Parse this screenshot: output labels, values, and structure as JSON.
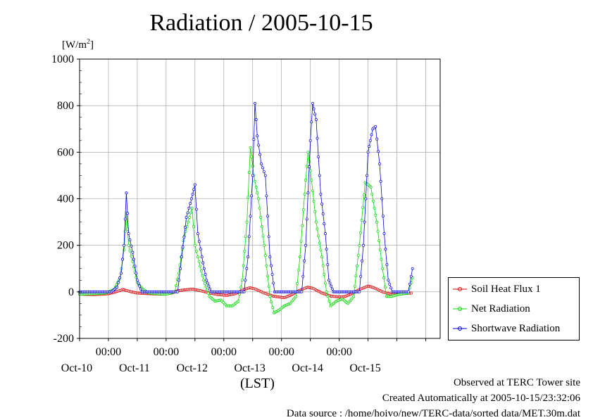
{
  "title": "Radiation / 2005-10-15",
  "ylabel_unit": "[W/m",
  "ylabel_unit_sup": "2",
  "ylabel_unit_close": "]",
  "xaxis_caption": "(LST)",
  "footer": {
    "line1": "Observed at TERC Tower site",
    "line2": "Created Automatically at 2005-10-15/23:32:06",
    "line3": "Data source : /home/hoivo/new/TERC-data/sorted  data/MET.30m.dat"
  },
  "colors": {
    "soil": "#e00000",
    "net": "#00d800",
    "sw": "#0000e0",
    "grid": "#999999"
  },
  "chart_data": {
    "type": "line",
    "title": "Radiation / 2005-10-15",
    "ylabel": "[W/m2]",
    "xlabel": "(LST)",
    "ylim": [
      -200,
      1000
    ],
    "yticks": [
      -200,
      0,
      200,
      400,
      600,
      800,
      1000
    ],
    "xlim_days": [
      9.5,
      15.75
    ],
    "xticks": [
      {
        "time": "00:00",
        "date": "Oct-10",
        "day": 10
      },
      {
        "time": "00:00",
        "date": "Oct-11",
        "day": 11
      },
      {
        "time": "00:00",
        "date": "Oct-12",
        "day": 12
      },
      {
        "time": "00:00",
        "date": "Oct-13",
        "day": 13
      },
      {
        "time": "00:00",
        "date": "Oct-14",
        "day": 14
      },
      {
        "time": "",
        "date": "Oct-15",
        "day": 15
      }
    ],
    "grid": true,
    "legend_position": "right",
    "series": [
      {
        "name": "Soil Heat Flux 1",
        "color": "#e00000",
        "points": [
          [
            9.5,
            -10
          ],
          [
            9.75,
            -12
          ],
          [
            9.9,
            -10
          ],
          [
            10.0,
            -8
          ],
          [
            10.1,
            -2
          ],
          [
            10.25,
            10
          ],
          [
            10.4,
            0
          ],
          [
            10.5,
            -5
          ],
          [
            10.7,
            -8
          ],
          [
            10.95,
            -10
          ],
          [
            11.1,
            -5
          ],
          [
            11.2,
            5
          ],
          [
            11.3,
            8
          ],
          [
            11.45,
            12
          ],
          [
            11.6,
            5
          ],
          [
            11.75,
            -5
          ],
          [
            11.9,
            -12
          ],
          [
            12.05,
            -15
          ],
          [
            12.2,
            -8
          ],
          [
            12.35,
            10
          ],
          [
            12.45,
            18
          ],
          [
            12.55,
            12
          ],
          [
            12.7,
            -5
          ],
          [
            12.85,
            -18
          ],
          [
            12.95,
            -22
          ],
          [
            13.05,
            -25
          ],
          [
            13.15,
            -15
          ],
          [
            13.3,
            5
          ],
          [
            13.45,
            20
          ],
          [
            13.55,
            15
          ],
          [
            13.7,
            -5
          ],
          [
            13.85,
            -18
          ],
          [
            14.0,
            -22
          ],
          [
            14.1,
            -20
          ],
          [
            14.2,
            -10
          ],
          [
            14.35,
            10
          ],
          [
            14.5,
            25
          ],
          [
            14.6,
            18
          ],
          [
            14.75,
            0
          ],
          [
            14.9,
            -10
          ],
          [
            15.0,
            -10
          ],
          [
            15.1,
            -8
          ],
          [
            15.25,
            -5
          ]
        ]
      },
      {
        "name": "Net Radiation",
        "color": "#00d800",
        "points": [
          [
            9.5,
            -10
          ],
          [
            9.75,
            -8
          ],
          [
            9.95,
            -5
          ],
          [
            10.1,
            10
          ],
          [
            10.2,
            60
          ],
          [
            10.27,
            180
          ],
          [
            10.31,
            340
          ],
          [
            10.35,
            200
          ],
          [
            10.42,
            130
          ],
          [
            10.5,
            40
          ],
          [
            10.6,
            10
          ],
          [
            10.7,
            -5
          ],
          [
            10.85,
            -8
          ],
          [
            11.0,
            -10
          ],
          [
            11.15,
            0
          ],
          [
            11.22,
            80
          ],
          [
            11.3,
            220
          ],
          [
            11.38,
            300
          ],
          [
            11.45,
            360
          ],
          [
            11.5,
            200
          ],
          [
            11.55,
            150
          ],
          [
            11.65,
            50
          ],
          [
            11.75,
            -20
          ],
          [
            11.85,
            -40
          ],
          [
            11.95,
            -35
          ],
          [
            12.05,
            -60
          ],
          [
            12.15,
            -60
          ],
          [
            12.25,
            -40
          ],
          [
            12.32,
            50
          ],
          [
            12.4,
            300
          ],
          [
            12.46,
            620
          ],
          [
            12.52,
            500
          ],
          [
            12.6,
            400
          ],
          [
            12.7,
            200
          ],
          [
            12.8,
            -20
          ],
          [
            12.87,
            -90
          ],
          [
            12.95,
            -80
          ],
          [
            13.05,
            -60
          ],
          [
            13.15,
            -50
          ],
          [
            13.25,
            -20
          ],
          [
            13.32,
            150
          ],
          [
            13.4,
            420
          ],
          [
            13.46,
            600
          ],
          [
            13.52,
            480
          ],
          [
            13.6,
            300
          ],
          [
            13.7,
            150
          ],
          [
            13.78,
            0
          ],
          [
            13.85,
            -60
          ],
          [
            13.95,
            -40
          ],
          [
            14.05,
            -30
          ],
          [
            14.15,
            -50
          ],
          [
            14.25,
            -20
          ],
          [
            14.35,
            200
          ],
          [
            14.45,
            470
          ],
          [
            14.55,
            450
          ],
          [
            14.65,
            300
          ],
          [
            14.75,
            100
          ],
          [
            14.82,
            -20
          ],
          [
            14.9,
            -20
          ],
          [
            15.05,
            -10
          ],
          [
            15.2,
            -5
          ],
          [
            15.27,
            60
          ]
        ]
      },
      {
        "name": "Shortwave Radiation",
        "color": "#0000e0",
        "points": [
          [
            9.5,
            0
          ],
          [
            10.05,
            0
          ],
          [
            10.15,
            20
          ],
          [
            10.22,
            80
          ],
          [
            10.27,
            200
          ],
          [
            10.31,
            425
          ],
          [
            10.35,
            250
          ],
          [
            10.42,
            170
          ],
          [
            10.5,
            50
          ],
          [
            10.58,
            0
          ],
          [
            11.2,
            0
          ],
          [
            11.27,
            150
          ],
          [
            11.35,
            320
          ],
          [
            11.42,
            380
          ],
          [
            11.5,
            460
          ],
          [
            11.55,
            250
          ],
          [
            11.62,
            150
          ],
          [
            11.7,
            50
          ],
          [
            11.78,
            0
          ],
          [
            12.35,
            0
          ],
          [
            12.42,
            150
          ],
          [
            12.5,
            500
          ],
          [
            12.54,
            810
          ],
          [
            12.58,
            670
          ],
          [
            12.65,
            550
          ],
          [
            12.72,
            500
          ],
          [
            12.8,
            150
          ],
          [
            12.88,
            0
          ],
          [
            13.35,
            0
          ],
          [
            13.42,
            200
          ],
          [
            13.5,
            650
          ],
          [
            13.54,
            810
          ],
          [
            13.6,
            740
          ],
          [
            13.68,
            420
          ],
          [
            13.76,
            250
          ],
          [
            13.82,
            50
          ],
          [
            13.9,
            0
          ],
          [
            14.35,
            0
          ],
          [
            14.42,
            200
          ],
          [
            14.5,
            600
          ],
          [
            14.58,
            700
          ],
          [
            14.63,
            710
          ],
          [
            14.7,
            550
          ],
          [
            14.78,
            250
          ],
          [
            14.85,
            50
          ],
          [
            14.92,
            0
          ],
          [
            15.2,
            0
          ],
          [
            15.27,
            100
          ]
        ]
      }
    ]
  }
}
